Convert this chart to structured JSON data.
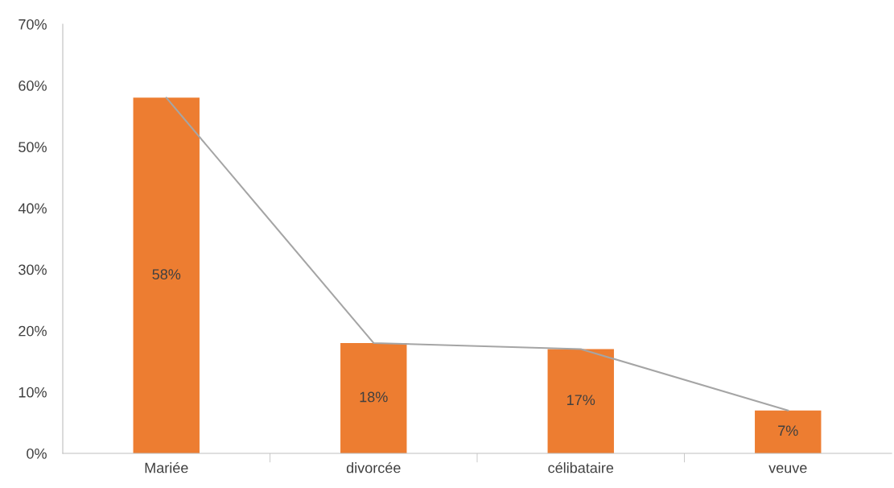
{
  "chart_data": {
    "type": "bar",
    "categories": [
      "Mariée",
      "divorcée",
      "célibataire",
      "veuve"
    ],
    "series": [
      {
        "color": "#ed7d31",
        "values": [
          58,
          18,
          17,
          7
        ],
        "value_labels": [
          "58%",
          "18%",
          "17%",
          "7%"
        ]
      },
      {
        "type": "line",
        "color": "#a5a5a5",
        "values": [
          58,
          18,
          17,
          7
        ]
      }
    ],
    "ylim": [
      0,
      70
    ],
    "yticks": [
      {
        "value": 0,
        "label": "0%"
      },
      {
        "value": 10,
        "label": "10%"
      },
      {
        "value": 20,
        "label": "20%"
      },
      {
        "value": 30,
        "label": "30%"
      },
      {
        "value": 40,
        "label": "40%"
      },
      {
        "value": 50,
        "label": "50%"
      },
      {
        "value": 60,
        "label": "60%"
      },
      {
        "value": 70,
        "label": "70%"
      }
    ],
    "grid": false,
    "legend": false,
    "marker": "none",
    "line_style": "solid"
  }
}
